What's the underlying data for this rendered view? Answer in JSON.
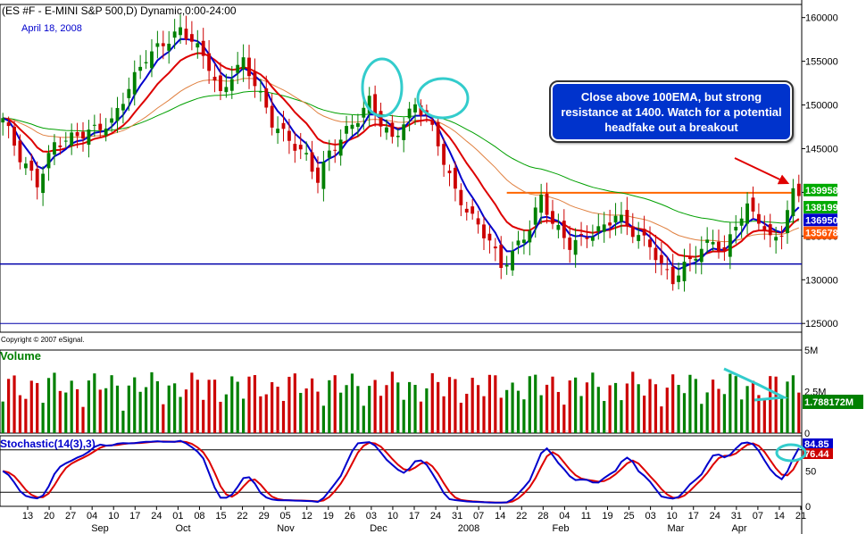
{
  "header": {
    "title": "(ES #F - E-MINI S&P 500,D) Dynamic,0:00-24:00",
    "date": "April 18, 2008"
  },
  "copyright": "Copyright © 2007 eSignal.",
  "annotation": "Close above 100EMA, but strong resistance at 1400. Watch for a potential headfake out a breakout",
  "panes": {
    "volume_label": "Volume",
    "stochastic_label": "Stochastic(14(3),3)"
  },
  "colors": {
    "up": "#008000",
    "down": "#cc0000",
    "ema_fast": "#0000cc",
    "ema_mid": "#dd0000",
    "ema_slow": "#e08040",
    "ema_long": "#00a000",
    "support": "#0000aa",
    "resistance": "#ff6600",
    "highlight": "#33cccc"
  },
  "chart_data": [
    {
      "type": "candlestick",
      "title": "(ES #F - E-MINI S&P 500,D) Dynamic,0:00-24:00",
      "ylim": [
        124000,
        161500
      ],
      "yticks": [
        "160000",
        "155000",
        "150000",
        "145000",
        "140000",
        "135000",
        "130000",
        "125000"
      ],
      "ytick_values": [
        160000,
        155000,
        150000,
        145000,
        140000,
        135000,
        130000,
        125000
      ],
      "xtick_labels": [
        "13",
        "20",
        "27",
        "04",
        "10",
        "17",
        "24",
        "01",
        "08",
        "15",
        "22",
        "29",
        "05",
        "12",
        "19",
        "26",
        "03",
        "10",
        "17",
        "24",
        "31",
        "07",
        "14",
        "22",
        "28",
        "04",
        "11",
        "19",
        "25",
        "03",
        "10",
        "17",
        "24",
        "31",
        "07",
        "14",
        "21"
      ],
      "month_labels": [
        "Sep",
        "Oct",
        "Nov",
        "Dec",
        "2008",
        "Feb",
        "Mar",
        "Apr"
      ],
      "price_labels": [
        {
          "text": "139958",
          "value": 139958,
          "color": "#00aa00"
        },
        {
          "text": "138199",
          "value": 138199,
          "color": "#00aa00"
        },
        {
          "text": "136950",
          "value": 136950,
          "color": "#0000cc"
        },
        {
          "text": "135678",
          "value": 135678,
          "color": "#ff5500"
        }
      ],
      "levels": [
        {
          "name": "support",
          "value": 131800
        },
        {
          "name": "resistance",
          "value": 139958
        },
        {
          "name": "bottom",
          "value": 125000
        }
      ],
      "series": [
        {
          "name": "price",
          "color_up": "#008000",
          "color_down": "#cc0000"
        },
        {
          "name": "EMA fast",
          "color": "#0000cc"
        },
        {
          "name": "EMA mid",
          "color": "#dd0000"
        },
        {
          "name": "EMA slow",
          "color": "#e08040"
        },
        {
          "name": "100EMA",
          "color": "#00a000"
        }
      ],
      "close_path": [
        [
          0,
          148500
        ],
        [
          3,
          144000
        ],
        [
          6,
          141000
        ],
        [
          9,
          145500
        ],
        [
          13,
          146500
        ],
        [
          16,
          147200
        ],
        [
          19,
          148000
        ],
        [
          22,
          152000
        ],
        [
          25,
          155500
        ],
        [
          28,
          157000
        ],
        [
          31,
          158500
        ],
        [
          33,
          157500
        ],
        [
          36,
          154500
        ],
        [
          38,
          151000
        ],
        [
          40,
          153500
        ],
        [
          42,
          155000
        ],
        [
          44,
          152500
        ],
        [
          47,
          148000
        ],
        [
          50,
          146000
        ],
        [
          53,
          144000
        ],
        [
          55,
          141500
        ],
        [
          57,
          144500
        ],
        [
          60,
          147000
        ],
        [
          62,
          148500
        ],
        [
          64,
          150500
        ],
        [
          66,
          148000
        ],
        [
          68,
          146000
        ],
        [
          70,
          148000
        ],
        [
          72,
          150000
        ],
        [
          74,
          148800
        ],
        [
          76,
          145500
        ],
        [
          79,
          140000
        ],
        [
          82,
          137000
        ],
        [
          85,
          134500
        ],
        [
          87,
          131500
        ],
        [
          89,
          133000
        ],
        [
          92,
          136000
        ],
        [
          94,
          139500
        ],
        [
          96,
          136500
        ],
        [
          99,
          134000
        ],
        [
          102,
          135000
        ],
        [
          105,
          136000
        ],
        [
          107,
          137500
        ],
        [
          110,
          135500
        ],
        [
          113,
          134000
        ],
        [
          115,
          131500
        ],
        [
          117,
          130000
        ],
        [
          119,
          131500
        ],
        [
          121,
          133000
        ],
        [
          124,
          134500
        ],
        [
          126,
          133000
        ],
        [
          128,
          136500
        ],
        [
          130,
          138200
        ],
        [
          132,
          137000
        ],
        [
          134,
          134500
        ],
        [
          136,
          135500
        ],
        [
          138,
          139958
        ]
      ],
      "volume_ylim": [
        0,
        5000000
      ],
      "volume_ticks": [
        "5M",
        "2.5M",
        "0"
      ],
      "volume_tick_values": [
        5000000,
        2500000,
        0
      ],
      "volume_last_label": "1.788172M",
      "stochastic_ylim": [
        0,
        100
      ],
      "stochastic_ticks": [
        "50",
        "0"
      ],
      "stochastic_tick_values": [
        50,
        0
      ],
      "stochastic_levels": [
        80,
        20
      ],
      "stochastic_labels": [
        {
          "text": "84.85",
          "value": 84.85,
          "color": "#0000cc"
        },
        {
          "text": "76.44",
          "value": 76.44,
          "color": "#cc0000"
        }
      ]
    }
  ]
}
